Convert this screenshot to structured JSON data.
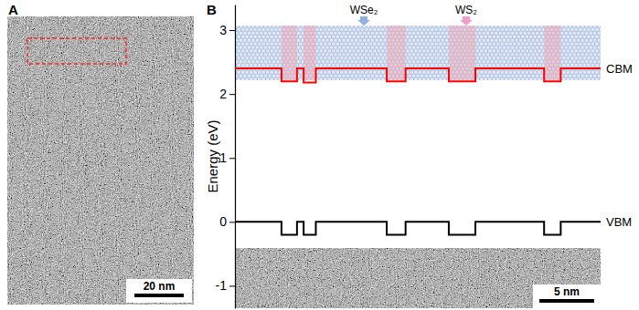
{
  "chart_data": {
    "type": "line",
    "ylabel": "Energy (eV)",
    "xlim": [
      0,
      33
    ],
    "ylim": [
      -1.35,
      3.4
    ],
    "yticks": [
      3,
      2,
      1,
      0,
      -1
    ],
    "tick_labels": "y",
    "x": [
      0,
      4.2,
      5.6,
      6.2,
      7.3,
      13.7,
      15.4,
      19.3,
      21.7,
      27.9,
      29.4,
      33
    ],
    "series": [
      {
        "name": "CBM",
        "color": "#ff0000",
        "line_style": "step",
        "values": [
          2.4,
          2.2,
          2.4,
          2.18,
          2.4,
          2.2,
          2.4,
          2.2,
          2.4,
          2.2,
          2.4,
          2.4
        ]
      },
      {
        "name": "VBM",
        "color": "#000000",
        "line_style": "step",
        "values": [
          0,
          -0.2,
          0,
          -0.2,
          0,
          -0.2,
          0,
          -0.2,
          0,
          -0.2,
          0,
          0
        ]
      }
    ],
    "annotations": [
      "A",
      "B",
      "WSe₂",
      "WS₂",
      "20 nm",
      "5 nm"
    ]
  }
}
